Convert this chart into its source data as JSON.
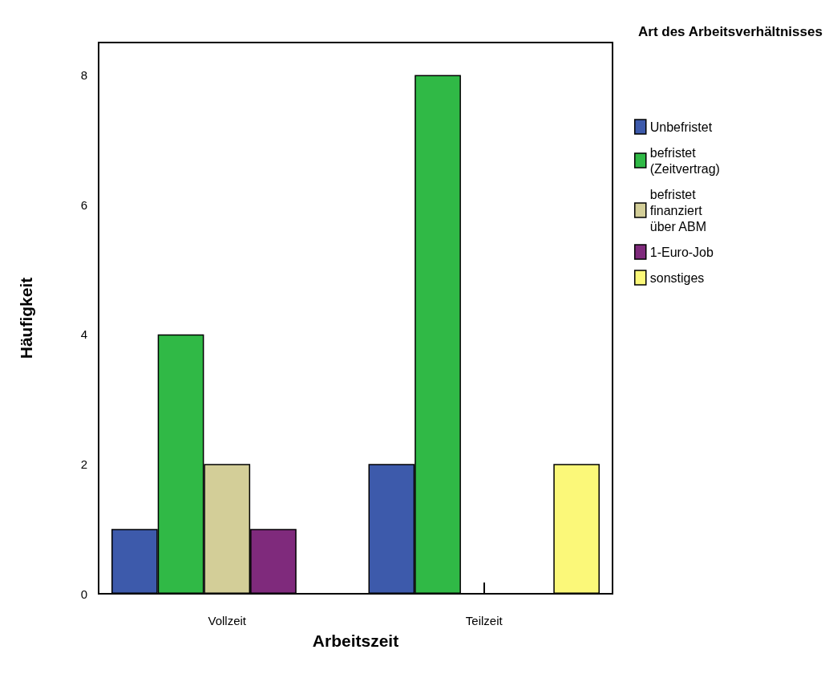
{
  "chart_data": {
    "type": "bar",
    "xlabel": "Arbeitszeit",
    "ylabel": "Häufigkeit",
    "legend_title": "Art des Arbeitsverhältnisses",
    "categories": [
      "Vollzeit",
      "Teilzeit"
    ],
    "series": [
      {
        "name": "Unbefristet",
        "color": "#3d5aab",
        "values": [
          1,
          2
        ]
      },
      {
        "name": "befristet (Zeitvertrag)",
        "color": "#30b946",
        "values": [
          4,
          8
        ]
      },
      {
        "name": "befristet finanziert über ABM",
        "color": "#d3ce98",
        "values": [
          2,
          null
        ]
      },
      {
        "name": "1-Euro-Job",
        "color": "#7f2a7c",
        "values": [
          1,
          null
        ]
      },
      {
        "name": "sonstiges",
        "color": "#fbf879",
        "values": [
          null,
          2
        ]
      }
    ],
    "ylim": [
      0,
      8.5
    ],
    "yticks": [
      0,
      2,
      4,
      6,
      8
    ],
    "grid": false,
    "legend": "right"
  }
}
